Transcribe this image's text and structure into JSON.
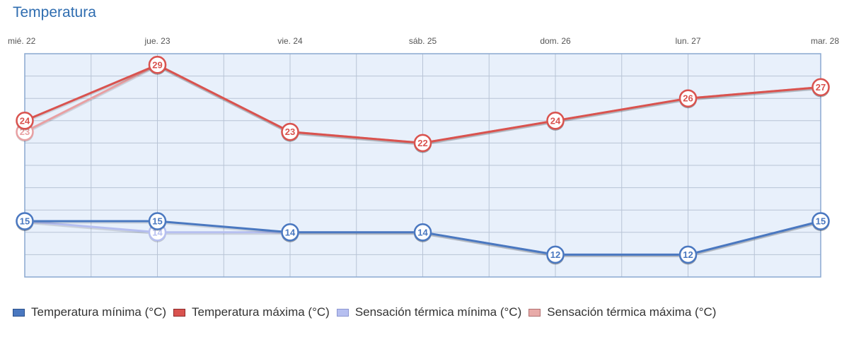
{
  "chart_data": {
    "type": "line",
    "title": "Temperatura",
    "categories": [
      "mié. 22",
      "jue. 23",
      "vie. 24",
      "sáb. 25",
      "dom. 26",
      "lun. 27",
      "mar. 28"
    ],
    "ylim": [
      10,
      30
    ],
    "grid": true,
    "legend_position": "bottom",
    "series": [
      {
        "name": "Sensación térmica máxima (°C)",
        "values": [
          23,
          29,
          23,
          22,
          24,
          26,
          27
        ],
        "color": "#e8a0a3",
        "fill": "#e8aaa8",
        "border": "#b07070",
        "show_labels": [
          "23"
        ]
      },
      {
        "name": "Sensación térmica mínima (°C)",
        "values": [
          15,
          14,
          14,
          14,
          12,
          12,
          15
        ],
        "color": "#b6bff0",
        "fill": "#b6bff0",
        "border": "#8c96d0",
        "show_labels": [
          "14"
        ]
      },
      {
        "name": "Temperatura máxima (°C)",
        "values": [
          24,
          29,
          23,
          22,
          24,
          26,
          27
        ],
        "color": "#d9534f",
        "fill": "#d9534f",
        "border": "#8c2a2a",
        "show_labels": [
          "24",
          "29",
          "23",
          "22",
          "24",
          "26",
          "27"
        ]
      },
      {
        "name": "Temperatura mínima (°C)",
        "values": [
          15,
          15,
          14,
          14,
          12,
          12,
          15
        ],
        "color": "#4a78c0",
        "fill": "#4a78c0",
        "border": "#2a4f8a",
        "show_labels": [
          "15",
          "15",
          "14",
          "14",
          "12",
          "12",
          "15"
        ]
      }
    ],
    "legend_order": [
      3,
      2,
      1,
      0
    ]
  },
  "style": {
    "plot_background": "#e8f0fb",
    "plot_border": "#8aa8d0",
    "grid_color": "#b8c4d6"
  }
}
